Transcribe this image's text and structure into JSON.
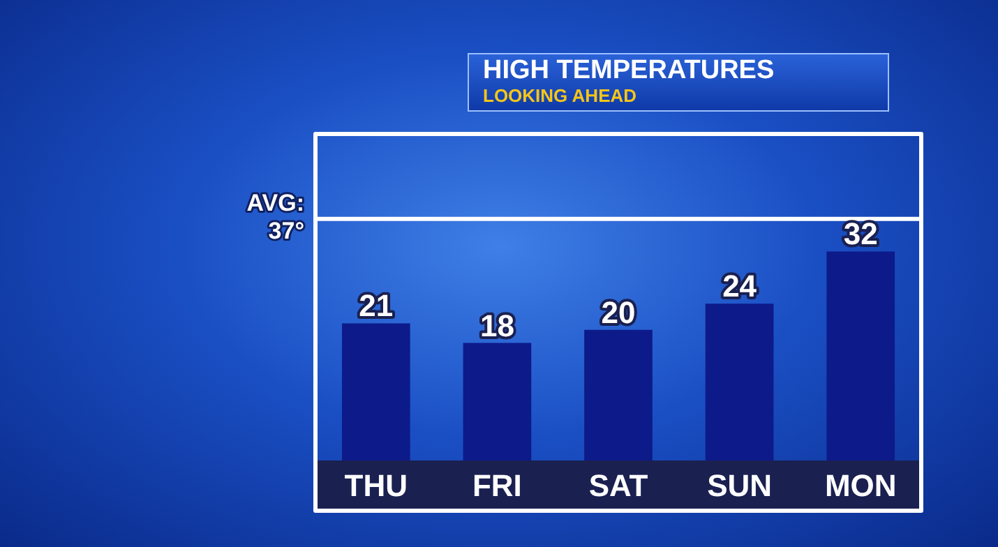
{
  "chart_data": {
    "type": "bar",
    "title": "HIGH TEMPERATURES",
    "subtitle": "LOOKING AHEAD",
    "categories": [
      "THU",
      "FRI",
      "SAT",
      "SUN",
      "MON"
    ],
    "values": [
      21,
      18,
      20,
      24,
      32
    ],
    "color": "#0d1a8a",
    "data_labels": true,
    "ylim": [
      0,
      50
    ],
    "tick_labels": "x",
    "grid": false,
    "legend": false,
    "ref_lines": [
      {
        "axis": "y",
        "value": 37,
        "label": "AVG: 37°",
        "color": "#ffffff"
      }
    ]
  }
}
